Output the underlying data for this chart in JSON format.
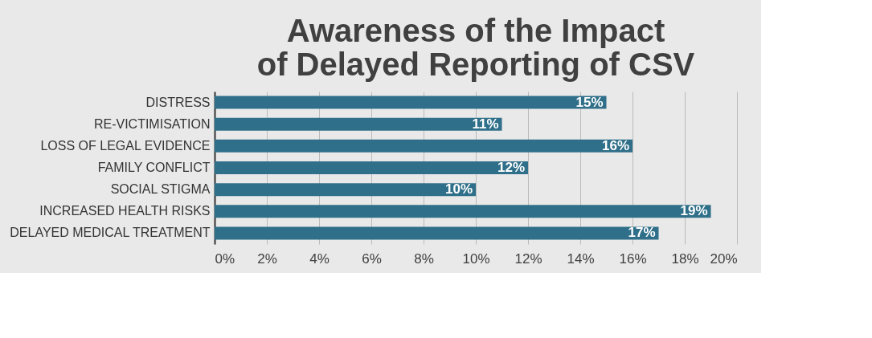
{
  "chart_data": {
    "type": "bar",
    "orientation": "horizontal",
    "title": "Awareness of the Impact of Delayed Reporting of CSV",
    "categories": [
      "DISTRESS",
      "RE-VICTIMISATION",
      "LOSS OF LEGAL EVIDENCE",
      "FAMILY CONFLICT",
      "SOCIAL STIGMA",
      "INCREASED HEALTH RISKS",
      "DELAYED MEDICAL TREATMENT"
    ],
    "values": [
      15,
      11,
      16,
      12,
      10,
      19,
      17
    ],
    "value_labels": [
      "15%",
      "11%",
      "16%",
      "12%",
      "10%",
      "19%",
      "17%"
    ],
    "color": "#2f6f89",
    "xlim": [
      0,
      20
    ],
    "xticks": [
      {
        "value": 0,
        "label": "0%"
      },
      {
        "value": 2,
        "label": "2%"
      },
      {
        "value": 4,
        "label": "4%"
      },
      {
        "value": 6,
        "label": "6%"
      },
      {
        "value": 8,
        "label": "8%"
      },
      {
        "value": 10,
        "label": "10%"
      },
      {
        "value": 12,
        "label": "12%"
      },
      {
        "value": 14,
        "label": "14%"
      },
      {
        "value": 16,
        "label": "16%"
      },
      {
        "value": 18,
        "label": "18%"
      },
      {
        "value": 20,
        "label": "20%"
      }
    ],
    "grid": "x"
  }
}
